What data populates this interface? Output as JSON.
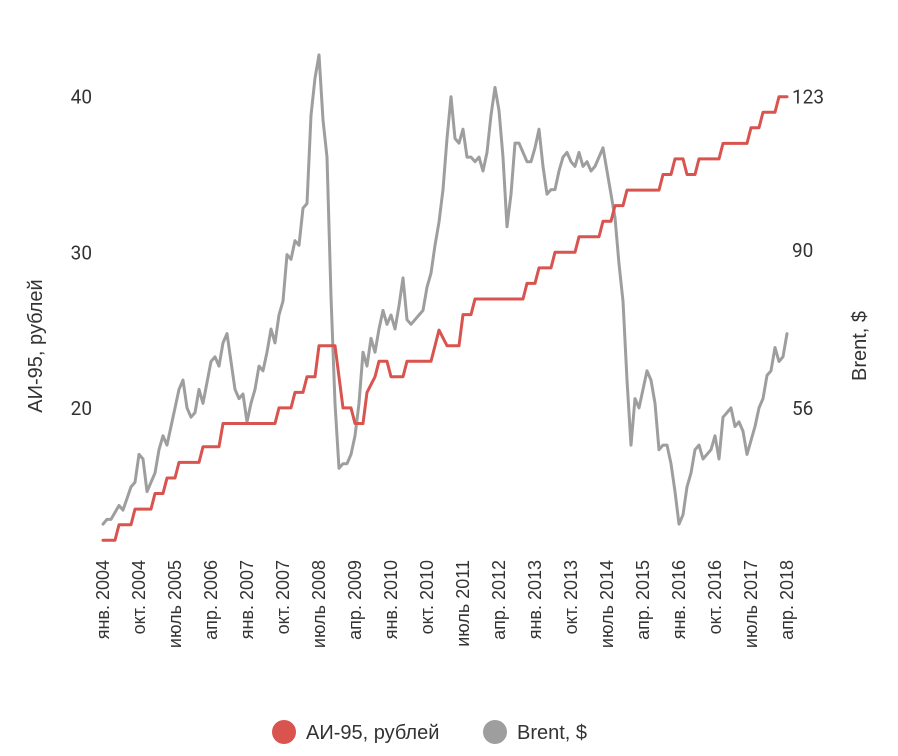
{
  "chart_data": {
    "type": "line",
    "title": "",
    "x_tick_labels": [
      "янв. 2004",
      "окт. 2004",
      "июль 2005",
      "апр. 2006",
      "янв. 2007",
      "окт. 2007",
      "июль 2008",
      "апр. 2009",
      "янв. 2010",
      "окт. 2010",
      "июль 2011",
      "апр. 2012",
      "янв. 2013",
      "окт. 2013",
      "июль 2014",
      "апр. 2015",
      "янв. 2016",
      "окт. 2016",
      "июль 2017",
      "апр. 2018"
    ],
    "x_range": [
      "2004-01",
      "2018-04"
    ],
    "left_axis": {
      "label": "АИ-95, рублей",
      "ticks": [
        20,
        30,
        40
      ],
      "range": [
        11,
        43
      ]
    },
    "right_axis": {
      "label": "Brent, $",
      "ticks": [
        56,
        90,
        123
      ]
    },
    "legend": {
      "position": "bottom-center"
    },
    "grid": false,
    "series": [
      {
        "name": "АИ-95, рублей",
        "axis": "left",
        "color": "#d9534f",
        "points": [
          [
            "2004-01",
            11.5
          ],
          [
            "2004-04",
            11.5
          ],
          [
            "2004-05",
            12.5
          ],
          [
            "2004-08",
            12.5
          ],
          [
            "2004-09",
            13.5
          ],
          [
            "2005-01",
            13.5
          ],
          [
            "2005-02",
            14.5
          ],
          [
            "2005-04",
            14.5
          ],
          [
            "2005-05",
            15.5
          ],
          [
            "2005-07",
            15.5
          ],
          [
            "2005-08",
            16.5
          ],
          [
            "2006-01",
            16.5
          ],
          [
            "2006-02",
            17.5
          ],
          [
            "2006-06",
            17.5
          ],
          [
            "2006-07",
            19.0
          ],
          [
            "2007-08",
            19.0
          ],
          [
            "2007-09",
            20.0
          ],
          [
            "2007-12",
            20.0
          ],
          [
            "2008-01",
            21.0
          ],
          [
            "2008-03",
            21.0
          ],
          [
            "2008-04",
            22.0
          ],
          [
            "2008-06",
            22.0
          ],
          [
            "2008-07",
            24.0
          ],
          [
            "2008-11",
            24.0
          ],
          [
            "2009-01",
            20.0
          ],
          [
            "2009-03",
            20.0
          ],
          [
            "2009-04",
            19.0
          ],
          [
            "2009-06",
            19.0
          ],
          [
            "2009-07",
            21.0
          ],
          [
            "2009-09",
            22.0
          ],
          [
            "2009-10",
            23.0
          ],
          [
            "2009-12",
            23.0
          ],
          [
            "2010-01",
            22.0
          ],
          [
            "2010-04",
            22.0
          ],
          [
            "2010-05",
            23.0
          ],
          [
            "2010-11",
            23.0
          ],
          [
            "2010-12",
            24.0
          ],
          [
            "2011-01",
            25.0
          ],
          [
            "2011-03",
            24.0
          ],
          [
            "2011-06",
            24.0
          ],
          [
            "2011-07",
            26.0
          ],
          [
            "2011-09",
            26.0
          ],
          [
            "2011-10",
            27.0
          ],
          [
            "2012-10",
            27.0
          ],
          [
            "2012-11",
            28.0
          ],
          [
            "2013-01",
            28.0
          ],
          [
            "2013-02",
            29.0
          ],
          [
            "2013-05",
            29.0
          ],
          [
            "2013-06",
            30.0
          ],
          [
            "2013-11",
            30.0
          ],
          [
            "2013-12",
            31.0
          ],
          [
            "2014-05",
            31.0
          ],
          [
            "2014-06",
            32.0
          ],
          [
            "2014-08",
            32.0
          ],
          [
            "2014-09",
            33.0
          ],
          [
            "2014-11",
            33.0
          ],
          [
            "2014-12",
            34.0
          ],
          [
            "2015-08",
            34.0
          ],
          [
            "2015-09",
            35.0
          ],
          [
            "2015-11",
            35.0
          ],
          [
            "2015-12",
            36.0
          ],
          [
            "2016-02",
            36.0
          ],
          [
            "2016-03",
            35.0
          ],
          [
            "2016-05",
            35.0
          ],
          [
            "2016-06",
            36.0
          ],
          [
            "2016-11",
            36.0
          ],
          [
            "2016-12",
            37.0
          ],
          [
            "2017-06",
            37.0
          ],
          [
            "2017-07",
            38.0
          ],
          [
            "2017-09",
            38.0
          ],
          [
            "2017-10",
            39.0
          ],
          [
            "2018-01",
            39.0
          ],
          [
            "2018-02",
            40.0
          ],
          [
            "2018-04",
            40.0
          ]
        ]
      },
      {
        "name": "Brent, $",
        "axis": "right",
        "color": "#9e9e9e",
        "points": [
          [
            "2004-01",
            31
          ],
          [
            "2004-02",
            32
          ],
          [
            "2004-03",
            32
          ],
          [
            "2004-05",
            35
          ],
          [
            "2004-06",
            34
          ],
          [
            "2004-08",
            39
          ],
          [
            "2004-09",
            40
          ],
          [
            "2004-10",
            46
          ],
          [
            "2004-11",
            45
          ],
          [
            "2004-12",
            38
          ],
          [
            "2005-02",
            42
          ],
          [
            "2005-03",
            47
          ],
          [
            "2005-04",
            50
          ],
          [
            "2005-05",
            48
          ],
          [
            "2005-06",
            52
          ],
          [
            "2005-08",
            60
          ],
          [
            "2005-09",
            62
          ],
          [
            "2005-10",
            56
          ],
          [
            "2005-11",
            54
          ],
          [
            "2005-12",
            55
          ],
          [
            "2006-01",
            60
          ],
          [
            "2006-02",
            57
          ],
          [
            "2006-04",
            66
          ],
          [
            "2006-05",
            67
          ],
          [
            "2006-06",
            65
          ],
          [
            "2006-07",
            70
          ],
          [
            "2006-08",
            72
          ],
          [
            "2006-09",
            66
          ],
          [
            "2006-10",
            60
          ],
          [
            "2006-11",
            58
          ],
          [
            "2006-12",
            59
          ],
          [
            "2007-01",
            53
          ],
          [
            "2007-02",
            57
          ],
          [
            "2007-03",
            60
          ],
          [
            "2007-04",
            65
          ],
          [
            "2007-05",
            64
          ],
          [
            "2007-06",
            68
          ],
          [
            "2007-07",
            73
          ],
          [
            "2007-08",
            70
          ],
          [
            "2007-09",
            76
          ],
          [
            "2007-10",
            79
          ],
          [
            "2007-11",
            89
          ],
          [
            "2007-12",
            88
          ],
          [
            "2008-01",
            92
          ],
          [
            "2008-02",
            91
          ],
          [
            "2008-03",
            99
          ],
          [
            "2008-04",
            100
          ],
          [
            "2008-05",
            119
          ],
          [
            "2008-06",
            127
          ],
          [
            "2008-07",
            132
          ],
          [
            "2008-08",
            118
          ],
          [
            "2008-09",
            110
          ],
          [
            "2008-10",
            80
          ],
          [
            "2008-11",
            57
          ],
          [
            "2008-12",
            43
          ],
          [
            "2009-01",
            44
          ],
          [
            "2009-02",
            44
          ],
          [
            "2009-03",
            46
          ],
          [
            "2009-04",
            50
          ],
          [
            "2009-05",
            57
          ],
          [
            "2009-06",
            68
          ],
          [
            "2009-07",
            65
          ],
          [
            "2009-08",
            71
          ],
          [
            "2009-09",
            68
          ],
          [
            "2009-10",
            73
          ],
          [
            "2009-11",
            77
          ],
          [
            "2009-12",
            74
          ],
          [
            "2010-01",
            76
          ],
          [
            "2010-02",
            73
          ],
          [
            "2010-03",
            78
          ],
          [
            "2010-04",
            84
          ],
          [
            "2010-05",
            75
          ],
          [
            "2010-06",
            74
          ],
          [
            "2010-07",
            75
          ],
          [
            "2010-08",
            76
          ],
          [
            "2010-09",
            77
          ],
          [
            "2010-10",
            82
          ],
          [
            "2010-11",
            85
          ],
          [
            "2010-12",
            91
          ],
          [
            "2011-01",
            96
          ],
          [
            "2011-02",
            103
          ],
          [
            "2011-03",
            114
          ],
          [
            "2011-04",
            123
          ],
          [
            "2011-05",
            114
          ],
          [
            "2011-06",
            113
          ],
          [
            "2011-07",
            116
          ],
          [
            "2011-08",
            110
          ],
          [
            "2011-09",
            110
          ],
          [
            "2011-10",
            109
          ],
          [
            "2011-11",
            110
          ],
          [
            "2011-12",
            107
          ],
          [
            "2012-01",
            111
          ],
          [
            "2012-02",
            119
          ],
          [
            "2012-03",
            125
          ],
          [
            "2012-04",
            120
          ],
          [
            "2012-05",
            110
          ],
          [
            "2012-06",
            95
          ],
          [
            "2012-07",
            102
          ],
          [
            "2012-08",
            113
          ],
          [
            "2012-09",
            113
          ],
          [
            "2012-10",
            111
          ],
          [
            "2012-11",
            109
          ],
          [
            "2012-12",
            109
          ],
          [
            "2013-01",
            112
          ],
          [
            "2013-02",
            116
          ],
          [
            "2013-03",
            108
          ],
          [
            "2013-04",
            102
          ],
          [
            "2013-05",
            103
          ],
          [
            "2013-06",
            103
          ],
          [
            "2013-07",
            107
          ],
          [
            "2013-08",
            110
          ],
          [
            "2013-09",
            111
          ],
          [
            "2013-10",
            109
          ],
          [
            "2013-11",
            108
          ],
          [
            "2013-12",
            111
          ],
          [
            "2014-01",
            108
          ],
          [
            "2014-02",
            109
          ],
          [
            "2014-03",
            107
          ],
          [
            "2014-04",
            108
          ],
          [
            "2014-05",
            110
          ],
          [
            "2014-06",
            112
          ],
          [
            "2014-07",
            107
          ],
          [
            "2014-08",
            102
          ],
          [
            "2014-09",
            97
          ],
          [
            "2014-10",
            87
          ],
          [
            "2014-11",
            79
          ],
          [
            "2014-12",
            62
          ],
          [
            "2015-01",
            48
          ],
          [
            "2015-02",
            58
          ],
          [
            "2015-03",
            56
          ],
          [
            "2015-04",
            60
          ],
          [
            "2015-05",
            64
          ],
          [
            "2015-06",
            62
          ],
          [
            "2015-07",
            57
          ],
          [
            "2015-08",
            47
          ],
          [
            "2015-09",
            48
          ],
          [
            "2015-10",
            48
          ],
          [
            "2015-11",
            44
          ],
          [
            "2015-12",
            38
          ],
          [
            "2016-01",
            31
          ],
          [
            "2016-02",
            33
          ],
          [
            "2016-03",
            39
          ],
          [
            "2016-04",
            42
          ],
          [
            "2016-05",
            47
          ],
          [
            "2016-06",
            48
          ],
          [
            "2016-07",
            45
          ],
          [
            "2016-08",
            46
          ],
          [
            "2016-09",
            47
          ],
          [
            "2016-10",
            50
          ],
          [
            "2016-11",
            45
          ],
          [
            "2016-12",
            54
          ],
          [
            "2017-01",
            55
          ],
          [
            "2017-02",
            56
          ],
          [
            "2017-03",
            52
          ],
          [
            "2017-04",
            53
          ],
          [
            "2017-05",
            51
          ],
          [
            "2017-06",
            46
          ],
          [
            "2017-07",
            49
          ],
          [
            "2017-08",
            52
          ],
          [
            "2017-09",
            56
          ],
          [
            "2017-10",
            58
          ],
          [
            "2017-11",
            63
          ],
          [
            "2017-12",
            64
          ],
          [
            "2018-01",
            69
          ],
          [
            "2018-02",
            66
          ],
          [
            "2018-03",
            67
          ],
          [
            "2018-04",
            72
          ]
        ]
      }
    ]
  }
}
